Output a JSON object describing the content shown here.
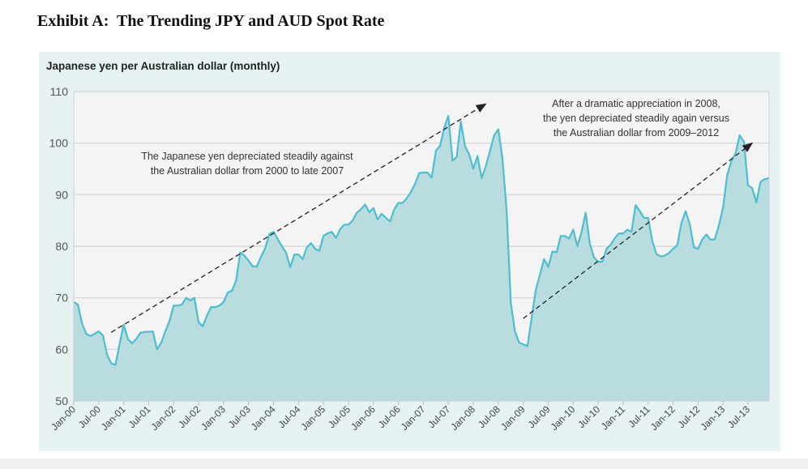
{
  "exhibit_title": "Exhibit A:  The Trending JPY and AUD Spot Rate",
  "chart_data": {
    "type": "area",
    "title": "Japanese yen per Australian dollar (monthly)",
    "x_start": "Jan-00",
    "x_end": "Dec-13",
    "frequency": "monthly",
    "ylim": [
      50,
      110
    ],
    "yticks": [
      50,
      60,
      70,
      80,
      90,
      100,
      110
    ],
    "xticks": [
      "Jan-00",
      "Jul-00",
      "Jan-01",
      "Jul-01",
      "Jan-02",
      "Jul-02",
      "Jan-03",
      "Jul-03",
      "Jan-04",
      "Jul-04",
      "Jan-05",
      "Jul-05",
      "Jan-06",
      "Jul-06",
      "Jan-07",
      "Jul-07",
      "Jan-08",
      "Jul-08",
      "Jan-09",
      "Jul-09",
      "Jan-10",
      "Jul-10",
      "Jan-11",
      "Jul-11",
      "Jan-12",
      "Jul-12",
      "Jan-13",
      "Jul-13"
    ],
    "grid": "horizontal",
    "colors": {
      "line": "#4bbfcf",
      "fill": "#b9dcdf",
      "plot_bg": "#f4f4f4",
      "panel_bg": "#e7f3f3",
      "grid": "#d4d4d4"
    },
    "values": [
      69.2,
      68.7,
      65,
      63,
      62.6,
      63,
      63.5,
      62.7,
      59,
      57.3,
      57,
      61,
      64.8,
      62,
      61.2,
      62,
      63.2,
      63.4,
      63.4,
      63.5,
      60,
      61.3,
      63.5,
      65.5,
      68.5,
      68.5,
      68.7,
      70,
      69.5,
      70,
      65.2,
      64.5,
      66.5,
      68.2,
      68.2,
      68.5,
      69.2,
      71,
      71.4,
      73.3,
      78.8,
      78.2,
      77.2,
      76.1,
      76.1,
      78,
      79.6,
      82.4,
      82.8,
      81.4,
      80,
      78.8,
      75.9,
      78.4,
      78.4,
      77.5,
      79.8,
      80.6,
      79.5,
      79.1,
      82,
      82.5,
      82.8,
      81.6,
      83.3,
      84.2,
      84.2,
      85,
      86.5,
      87.2,
      88.1,
      86.6,
      87.4,
      85.2,
      86.3,
      85.5,
      84.8,
      87.2,
      88.4,
      88.4,
      89.3,
      90.5,
      92.1,
      94.2,
      94.3,
      94.3,
      93.3,
      98.5,
      99.5,
      103,
      105.3,
      96.6,
      97.3,
      104.2,
      99.4,
      97.8,
      95,
      97.5,
      93.2,
      95.5,
      98.5,
      101.5,
      102.7,
      97,
      87,
      69,
      63.5,
      61.3,
      61,
      60.6,
      66,
      71.5,
      74.5,
      77.5,
      76,
      79,
      78.8,
      82,
      82,
      81.5,
      83.2,
      80,
      82.8,
      86.5,
      80.5,
      77.8,
      77,
      77,
      79.5,
      80.3,
      81.6,
      82.5,
      82.5,
      83.2,
      82.8,
      88,
      86.8,
      85.5,
      85.5,
      81,
      78.5,
      78,
      78.2,
      78.7,
      79.5,
      80.2,
      84.5,
      86.8,
      84.3,
      79.8,
      79.5,
      81.3,
      82.3,
      81.3,
      81.3,
      84,
      87.5,
      93.8,
      96.5,
      98,
      101.5,
      100.3,
      91.8,
      91.3,
      88.5,
      92.5,
      93,
      93.2
    ],
    "annotations": [
      {
        "text": [
          "The Japanese yen depreciated steadily against",
          "the Australian dollar from 2000 to late 2007"
        ],
        "arrow": {
          "from": [
            "Oct-00",
            63.3
          ],
          "to": [
            "Apr-08",
            107.6
          ]
        }
      },
      {
        "text": [
          "After a dramatic appreciation in 2008,",
          "the yen depreciated steadily again versus",
          "the Australian dollar from 2009–2012"
        ],
        "arrow": {
          "from": [
            "Jan-09",
            66
          ],
          "to": [
            "Aug-13",
            100
          ]
        }
      }
    ]
  }
}
